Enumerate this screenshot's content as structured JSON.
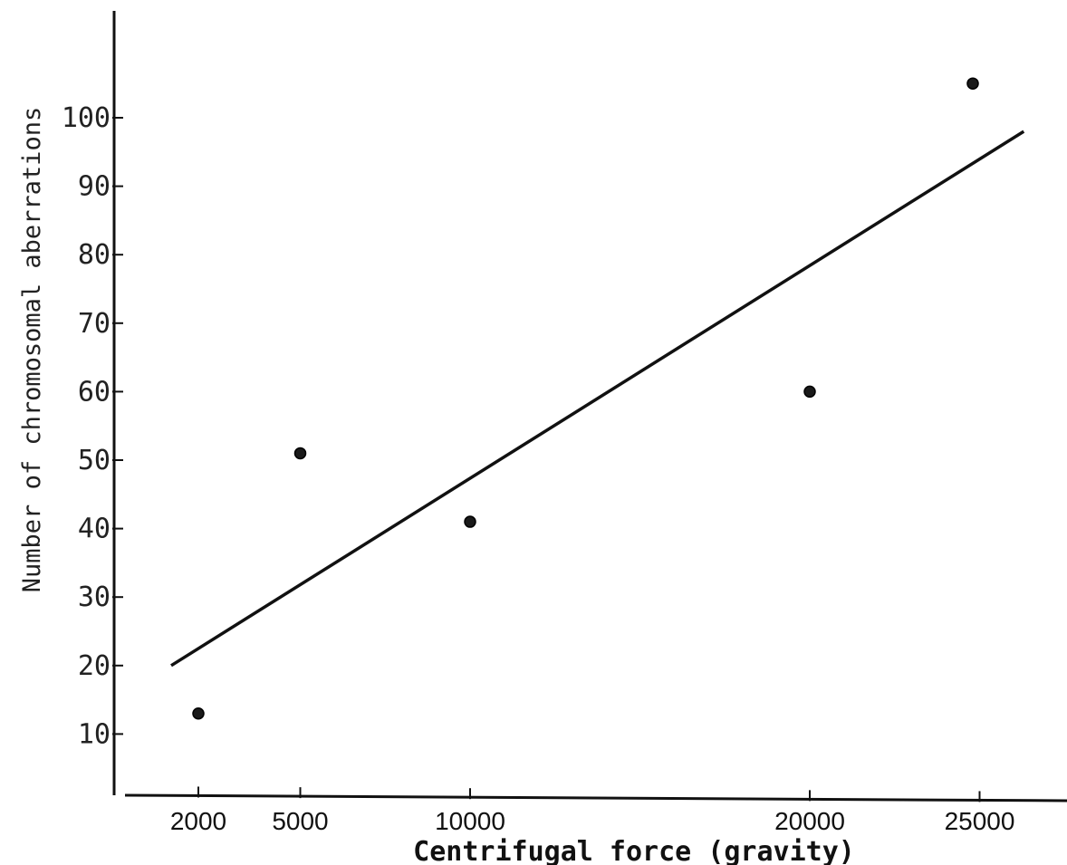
{
  "chart_data": {
    "type": "scatter",
    "xlabel": "Centrifugal force (gravity)",
    "ylabel": "Number of chromosomal aberrations",
    "x_ticks": [
      2000,
      5000,
      10000,
      20000,
      25000
    ],
    "x_tick_labels": [
      "2000",
      "5000",
      "10000",
      "20000",
      "25000"
    ],
    "y_ticks": [
      10,
      20,
      30,
      40,
      50,
      60,
      70,
      80,
      90,
      100
    ],
    "y_tick_labels": [
      "10",
      "20",
      "30",
      "40",
      "50",
      "60",
      "70",
      "80",
      "90",
      "100"
    ],
    "xlim": [
      0,
      27500
    ],
    "ylim": [
      0,
      110
    ],
    "grid": false,
    "series": [
      {
        "points": [
          {
            "x": 2000,
            "y": 13
          },
          {
            "x": 5000,
            "y": 51
          },
          {
            "x": 10000,
            "y": 41
          },
          {
            "x": 20000,
            "y": 60
          },
          {
            "x": 24800,
            "y": 105
          }
        ]
      }
    ],
    "trend_line": {
      "x": [
        1200,
        26300
      ],
      "y": [
        20,
        98
      ]
    },
    "colors": {
      "ink": "#111111"
    }
  }
}
